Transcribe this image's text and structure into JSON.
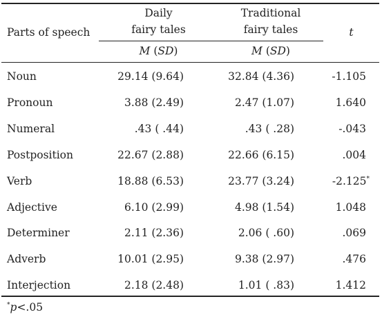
{
  "table": {
    "header": {
      "parts_of_speech": "Parts of speech",
      "group1_line1": "Daily",
      "group1_line2": "fairy tales",
      "group2_line1": "Traditional",
      "group2_line2": "fairy tales",
      "t_label": "t",
      "m": "M",
      "sd": "SD"
    },
    "rows": [
      {
        "label": "Noun",
        "daily": "29.14 (9.64)",
        "traditional": "32.84 (4.36)",
        "t": "-1.105",
        "t_mark": ""
      },
      {
        "label": "Pronoun",
        "daily": "3.88 (2.49)",
        "traditional": "2.47 (1.07)",
        "t": "1.640",
        "t_mark": ""
      },
      {
        "label": "Numeral",
        "daily": ".43 ( .44)",
        "traditional": ".43 ( .28)",
        "t": "-.043",
        "t_mark": ""
      },
      {
        "label": "Postposition",
        "daily": "22.67 (2.88)",
        "traditional": "22.66 (6.15)",
        "t": ".004",
        "t_mark": ""
      },
      {
        "label": "Verb",
        "daily": "18.88 (6.53)",
        "traditional": "23.77 (3.24)",
        "t": "-2.125",
        "t_mark": "*"
      },
      {
        "label": "Adjective",
        "daily": "6.10 (2.99)",
        "traditional": "4.98 (1.54)",
        "t": "1.048",
        "t_mark": ""
      },
      {
        "label": "Determiner",
        "daily": "2.11 (2.36)",
        "traditional": "2.06 ( .60)",
        "t": ".069",
        "t_mark": ""
      },
      {
        "label": "Adverb",
        "daily": "10.01 (2.95)",
        "traditional": "9.38 (2.97)",
        "t": ".476",
        "t_mark": ""
      },
      {
        "label": "Interjection",
        "daily": "2.18 (2.48)",
        "traditional": "1.01 ( .83)",
        "t": "1.412",
        "t_mark": ""
      }
    ]
  },
  "footnote": {
    "mark": "*",
    "p": "p",
    "text": "<.05"
  }
}
